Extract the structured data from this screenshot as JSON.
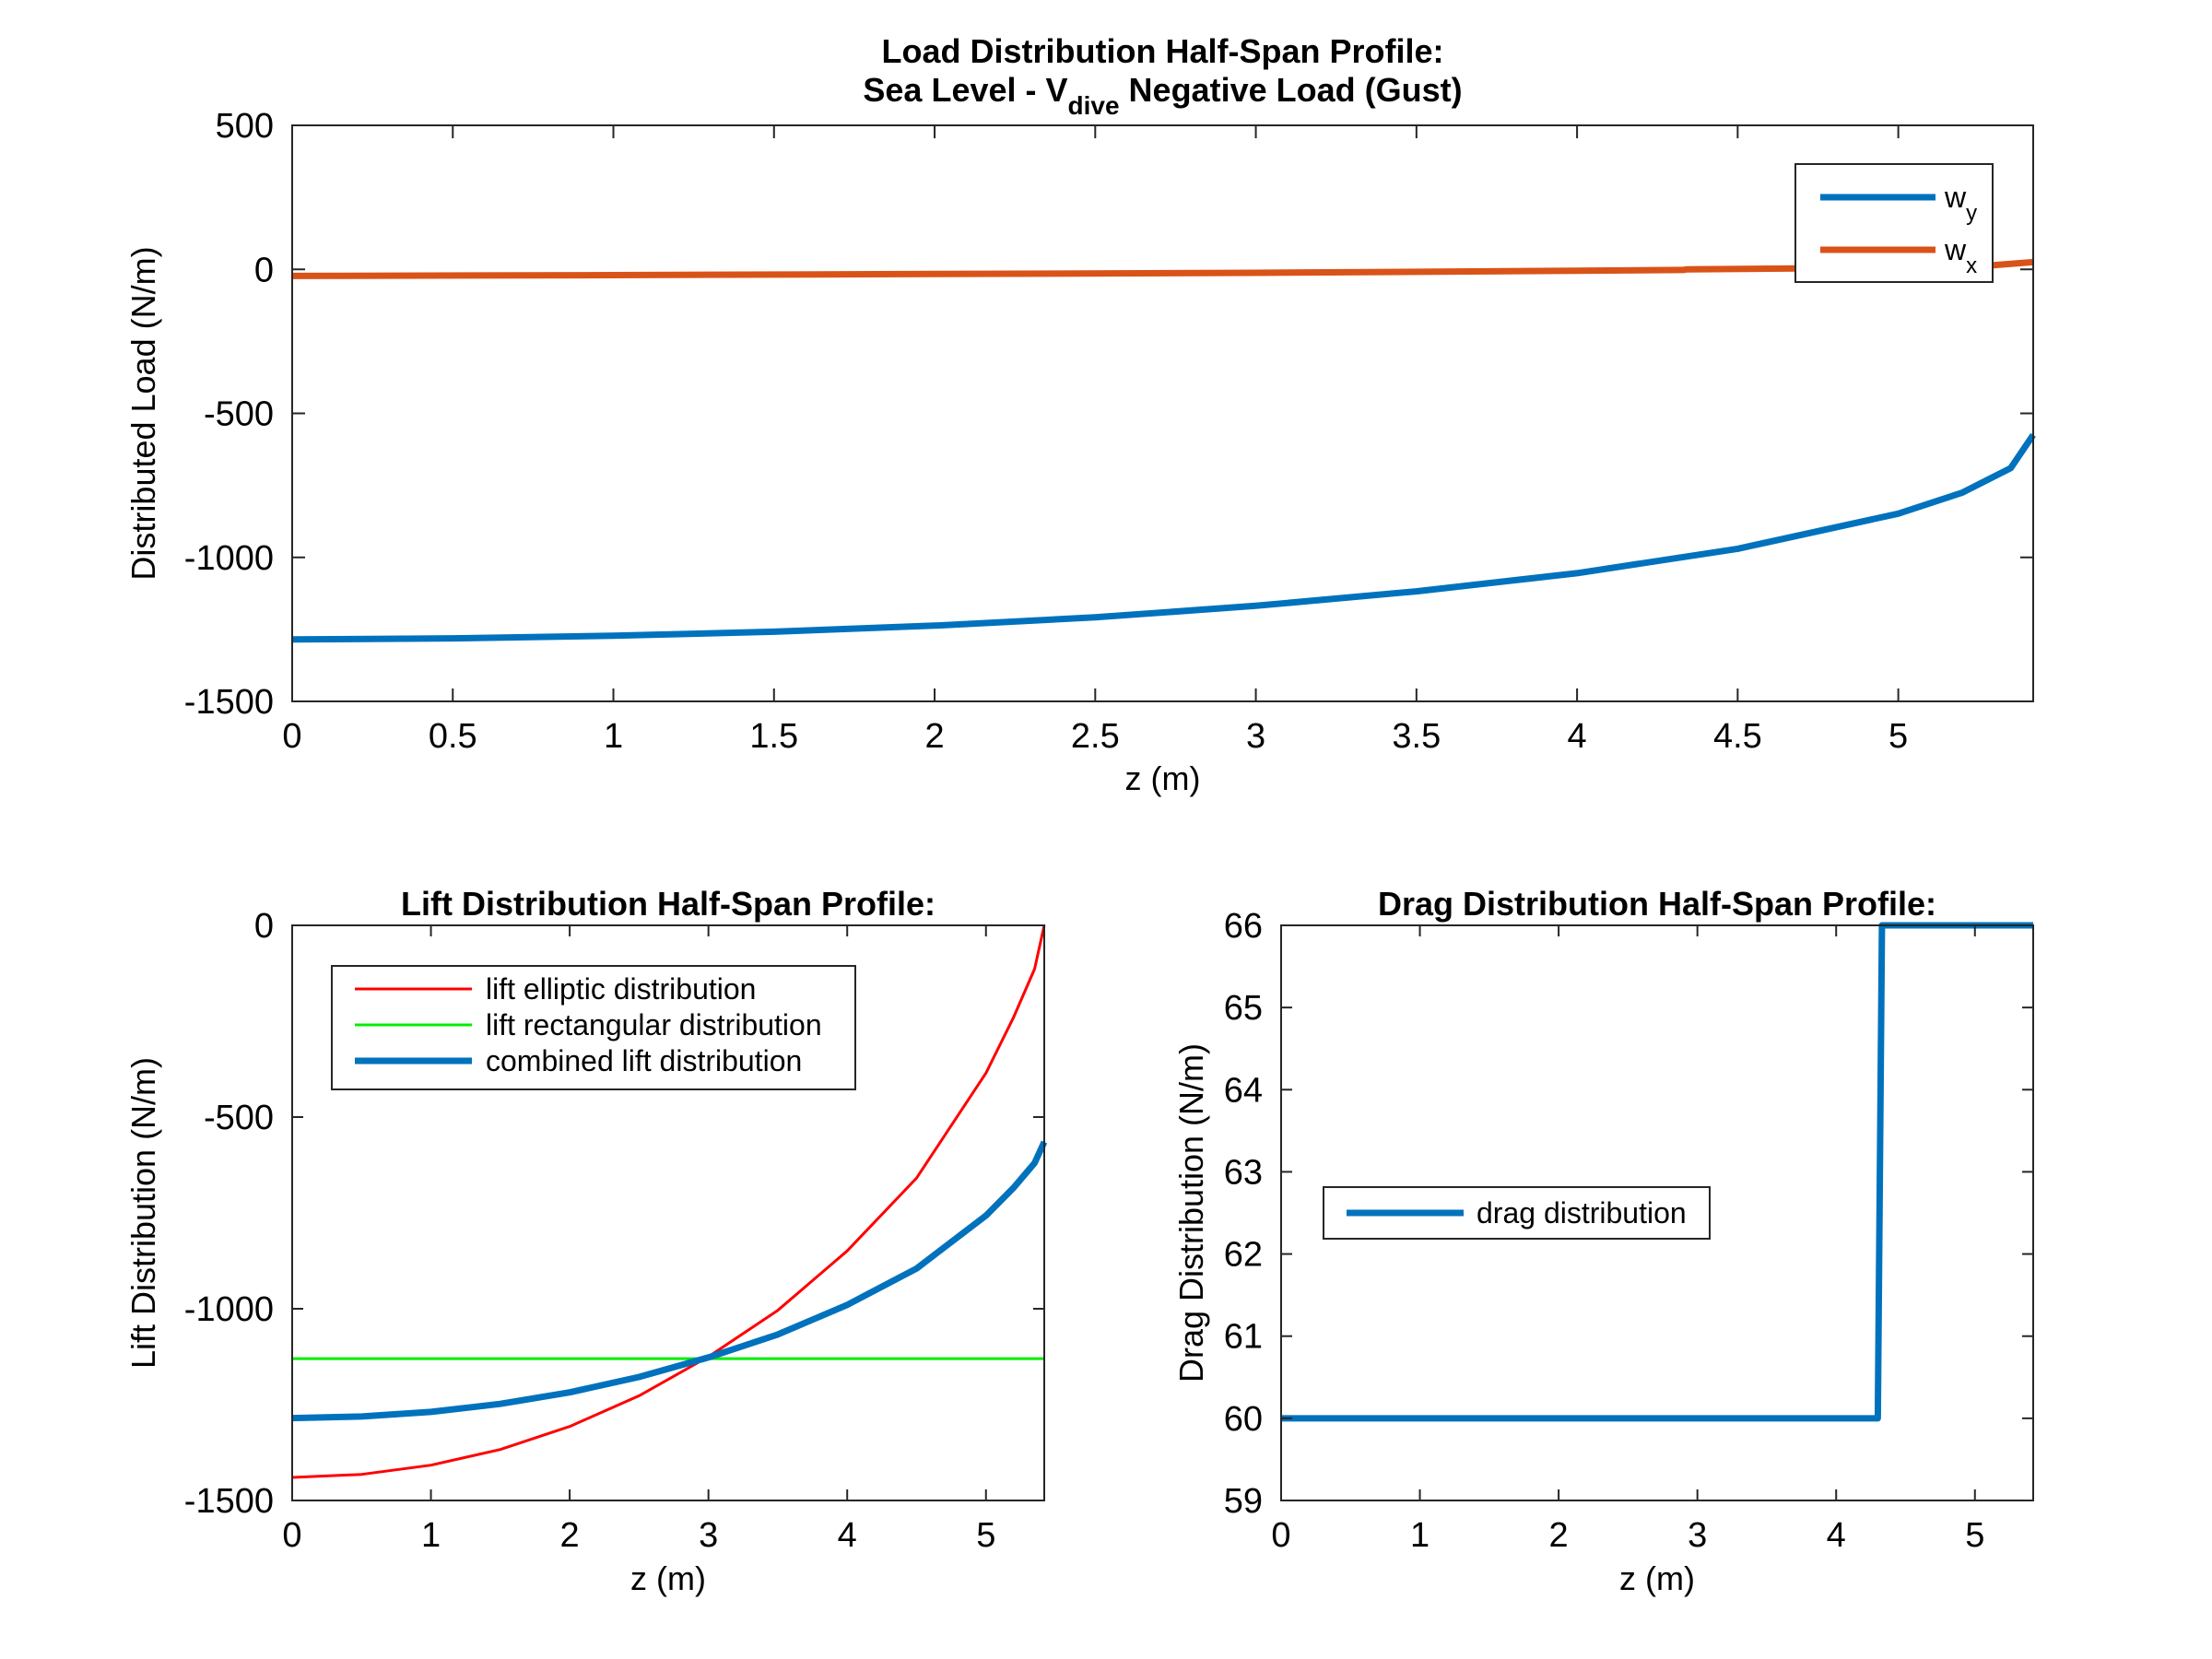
{
  "chart_data": [
    {
      "id": "load",
      "type": "line",
      "title_line1": "Load Distribution Half-Span Profile:",
      "title_line2": {
        "prefix": "Sea Level - V",
        "subscript": "dive",
        "suffix": " Negative Load (Gust)"
      },
      "xlabel": "z (m)",
      "ylabel": "Distributed Load (N/m)",
      "xlim": [
        0,
        5.42
      ],
      "ylim": [
        -1500,
        500
      ],
      "xticks": [
        0,
        0.5,
        1,
        1.5,
        2,
        2.5,
        3,
        3.5,
        4,
        4.5,
        5
      ],
      "xtick_labels": [
        "0",
        "0.5",
        "1",
        "1.5",
        "2",
        "2.5",
        "3",
        "3.5",
        "4",
        "4.5",
        "5"
      ],
      "yticks": [
        -1500,
        -1000,
        -500,
        0,
        500
      ],
      "ytick_labels": [
        "-1500",
        "-1000",
        "-500",
        "0",
        "500"
      ],
      "legend_location": "top-right",
      "series": [
        {
          "name": "w",
          "name_subscript": "y",
          "color": "#0072BD",
          "x": [
            0,
            0.5,
            1,
            1.5,
            2,
            2.5,
            3,
            3.5,
            4,
            4.5,
            5,
            5.2,
            5.35,
            5.42
          ],
          "y": [
            -1285,
            -1281,
            -1272,
            -1258,
            -1237,
            -1208,
            -1168,
            -1118,
            -1055,
            -970,
            -848,
            -775,
            -690,
            -575
          ]
        },
        {
          "name": "w",
          "name_subscript": "x",
          "color": "#D95319",
          "x": [
            0,
            1,
            2,
            3,
            4,
            4.33,
            4.34,
            5,
            5.3,
            5.42
          ],
          "y": [
            -23,
            -20,
            -16,
            -12,
            -5,
            -2,
            0,
            6,
            15,
            25
          ]
        }
      ]
    },
    {
      "id": "lift",
      "type": "line",
      "title": "Lift Distribution Half-Span Profile:",
      "xlabel": "z (m)",
      "ylabel": "Lift Distribution (N/m)",
      "xlim": [
        0,
        5.42
      ],
      "ylim": [
        -1500,
        0
      ],
      "xticks": [
        0,
        1,
        2,
        3,
        4,
        5
      ],
      "xtick_labels": [
        "0",
        "1",
        "2",
        "3",
        "4",
        "5"
      ],
      "yticks": [
        -1500,
        -1000,
        -500,
        0
      ],
      "ytick_labels": [
        "-1500",
        "-1000",
        "-500",
        "0"
      ],
      "legend_location": "top-left",
      "series": [
        {
          "name": "lift elliptic distribution",
          "color": "#FF0000",
          "weight": "thin",
          "x": [
            0,
            0.5,
            1,
            1.5,
            2,
            2.5,
            3,
            3.5,
            4,
            4.5,
            5,
            5.2,
            5.35,
            5.42
          ],
          "y": [
            -1440,
            -1432,
            -1408,
            -1367,
            -1307,
            -1227,
            -1125,
            -1004,
            -849,
            -659,
            -385,
            -239,
            -114,
            0
          ]
        },
        {
          "name": "lift rectangular distribution",
          "color": "#00EE00",
          "weight": "thin",
          "x": [
            0,
            5.42
          ],
          "y": [
            -1130,
            -1130
          ]
        },
        {
          "name": "combined lift distribution",
          "color": "#0072BD",
          "weight": "thick",
          "x": [
            0,
            0.5,
            1,
            1.5,
            2,
            2.5,
            3,
            3.5,
            4,
            4.5,
            5,
            5.2,
            5.35,
            5.42
          ],
          "y": [
            -1285,
            -1281,
            -1269,
            -1248,
            -1218,
            -1178,
            -1127,
            -1067,
            -990,
            -895,
            -757,
            -684,
            -620,
            -565
          ]
        }
      ]
    },
    {
      "id": "drag",
      "type": "line",
      "title": "Drag Distribution Half-Span Profile:",
      "xlabel": "z (m)",
      "ylabel": "Drag Distribution (N/m)",
      "xlim": [
        0,
        5.42
      ],
      "ylim": [
        59,
        66
      ],
      "xticks": [
        0,
        1,
        2,
        3,
        4,
        5
      ],
      "xtick_labels": [
        "0",
        "1",
        "2",
        "3",
        "4",
        "5"
      ],
      "yticks": [
        59,
        60,
        61,
        62,
        63,
        64,
        65,
        66
      ],
      "ytick_labels": [
        "59",
        "60",
        "61",
        "62",
        "63",
        "64",
        "65",
        "66"
      ],
      "legend_location": "center-left",
      "series": [
        {
          "name": "drag distribution",
          "color": "#0072BD",
          "weight": "thick",
          "x": [
            0,
            4.3,
            4.33,
            5.42
          ],
          "y": [
            60,
            60,
            66,
            66
          ]
        }
      ]
    }
  ]
}
